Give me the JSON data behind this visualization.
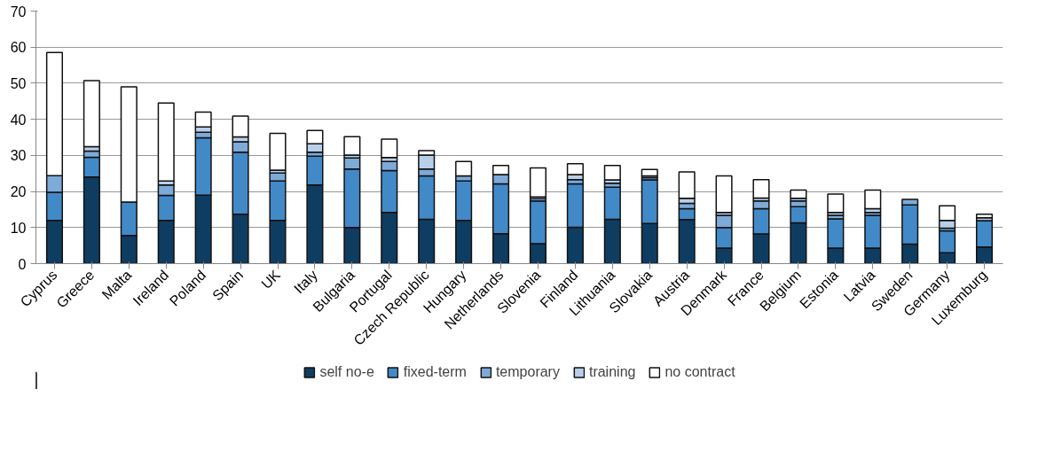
{
  "chart_data": {
    "type": "bar",
    "stacked": true,
    "categories": [
      "Cyprus",
      "Greece",
      "Malta",
      "Ireland",
      "Poland",
      "Spain",
      "UK",
      "Italy",
      "Bulgaria",
      "Portugal",
      "Czech Republic",
      "Hungary",
      "Netherlands",
      "Slovenia",
      "Finland",
      "Lithuania",
      "Slovakia",
      "Austria",
      "Denmark",
      "France",
      "Belgium",
      "Estonia",
      "Latvia",
      "Sweden",
      "Germany",
      "Luxemburg"
    ],
    "series": [
      {
        "name": "self no-e",
        "color": "#0f3d61",
        "values": [
          12,
          24,
          7.8,
          12,
          19,
          13.7,
          12,
          21.8,
          10,
          14.2,
          12.3,
          12,
          8.3,
          5.5,
          10.1,
          12.3,
          11.1,
          12.2,
          4.3,
          8.2,
          11.3,
          4.3,
          4.3,
          5.4,
          3,
          4.6
        ]
      },
      {
        "name": "fixed-term",
        "color": "#4289c8",
        "values": [
          7.8,
          5.5,
          9.3,
          6.9,
          15.9,
          17.2,
          10.9,
          8,
          16.2,
          11.6,
          12,
          10.9,
          13.8,
          11.9,
          12,
          8.9,
          12.1,
          3,
          5.7,
          7,
          4.5,
          8.1,
          9.1,
          10.9,
          6.1,
          7.3
        ]
      },
      {
        "name": "temporary",
        "color": "#7eaad8",
        "values": [
          4.6,
          1.7,
          null,
          2.9,
          1.5,
          2.9,
          2.2,
          1.1,
          3.1,
          2.5,
          1.9,
          1.4,
          2.6,
          0.6,
          1.2,
          1.1,
          0.6,
          1.5,
          3.4,
          2.2,
          1.6,
          1,
          0.8,
          1.5,
          0.7,
          null
        ]
      },
      {
        "name": "training",
        "color": "#b8cfe9",
        "values": [
          null,
          1.2,
          null,
          1.1,
          1.5,
          1.3,
          0.8,
          2.3,
          0.8,
          1.1,
          3.9,
          null,
          null,
          0.5,
          1.4,
          0.9,
          0.5,
          1.4,
          0.8,
          0.8,
          0.7,
          0.8,
          1,
          null,
          2.2,
          0.8
        ]
      },
      {
        "name": "no contract",
        "color": "#ffffff",
        "values": [
          34.1,
          18.3,
          31.9,
          21.6,
          4.1,
          5.8,
          10.2,
          3.7,
          5.1,
          5.1,
          1.2,
          4,
          2.5,
          8,
          3,
          4,
          1.8,
          7.3,
          10.1,
          5.1,
          2.3,
          5.1,
          5.2,
          null,
          4,
          1
        ]
      }
    ],
    "ylim": [
      0,
      70
    ],
    "yticks": [
      0,
      10,
      20,
      30,
      40,
      50,
      60,
      70
    ],
    "grid": "y",
    "legend": "bottom"
  }
}
